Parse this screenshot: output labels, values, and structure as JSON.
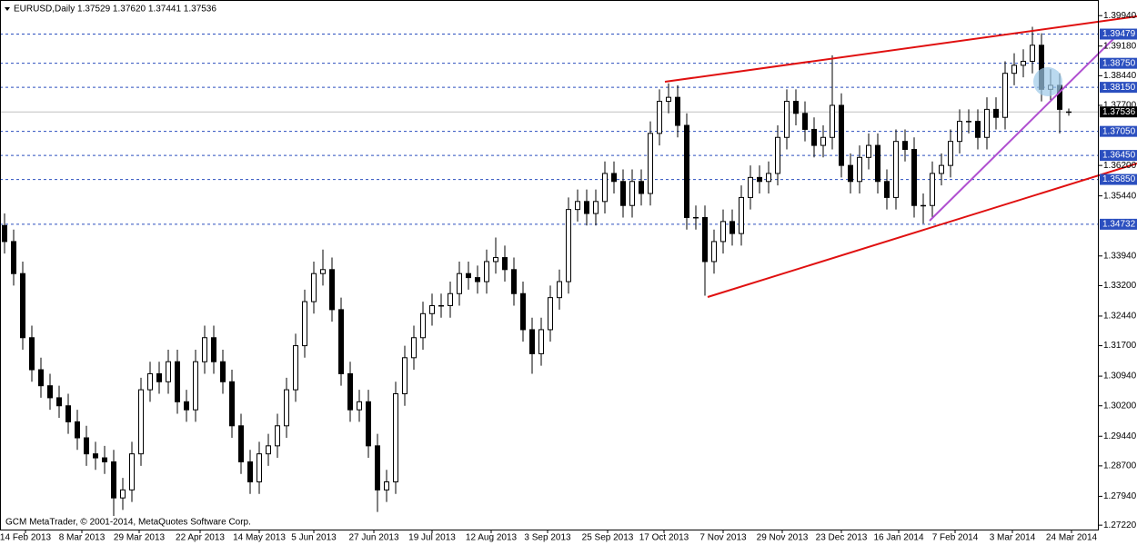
{
  "chart_data": {
    "type": "candlestick",
    "title": "EURUSD,Daily  1.37529 1.37620 1.37441 1.37536",
    "footer": "GCM MetaTrader, © 2001-2014, MetaQuotes Software Corp.",
    "current_price": 1.37536,
    "levels": [
      1.39479,
      {
        "value": 1.3875,
        "label": "1.38750"
      },
      {
        "value": 1.3815,
        "label": "1.38150"
      },
      {
        "value": 1.3705,
        "label": "1.37050"
      },
      {
        "value": 1.3645,
        "label": "1.36450"
      },
      {
        "value": 1.3585,
        "label": "1.35850"
      },
      1.34732
    ],
    "xlim": [
      -0.5,
      120.3
    ],
    "ylim": [
      1.2711,
      1.4033
    ],
    "yticks": [
      {
        "value": 1.3994,
        "label": "1.39940"
      },
      {
        "value": 1.3918,
        "label": "1.39180"
      },
      {
        "value": 1.3844,
        "label": "1.38440"
      },
      {
        "value": 1.377,
        "label": "1.37700"
      },
      {
        "value": 1.362,
        "label": "1.36200"
      },
      {
        "value": 1.3544,
        "label": "1.35440"
      },
      {
        "value": 1.3394,
        "label": "1.33940"
      },
      {
        "value": 1.332,
        "label": "1.33200"
      },
      {
        "value": 1.3244,
        "label": "1.32440"
      },
      {
        "value": 1.317,
        "label": "1.31700"
      },
      {
        "value": 1.3094,
        "label": "1.30940"
      },
      {
        "value": 1.302,
        "label": "1.30200"
      },
      {
        "value": 1.2944,
        "label": "1.29440"
      },
      {
        "value": 1.287,
        "label": "1.28700"
      },
      {
        "value": 1.2794,
        "label": "1.27940"
      },
      {
        "value": 1.2722,
        "label": "1.27220"
      }
    ],
    "xticks": [
      {
        "value": 2.3,
        "label": "14 Feb 2013"
      },
      {
        "value": 8.5,
        "label": "8 Mar 2013"
      },
      {
        "value": 14.8,
        "label": "29 Mar 2013"
      },
      {
        "value": 21.5,
        "label": "22 Apr 2013"
      },
      {
        "value": 28,
        "label": "14 May 2013"
      },
      {
        "value": 34,
        "label": "5 Jun 2013"
      },
      {
        "value": 40.6,
        "label": "27 Jun 2013"
      },
      {
        "value": 47,
        "label": "19 Jul 2013"
      },
      {
        "value": 53.5,
        "label": "12 Aug 2013"
      },
      {
        "value": 59.7,
        "label": "3 Sep 2013"
      },
      {
        "value": 66.3,
        "label": "25 Sep 2013"
      },
      {
        "value": 72.5,
        "label": "17 Oct 2013"
      },
      {
        "value": 79,
        "label": "7 Nov 2013"
      },
      {
        "value": 85.5,
        "label": "29 Nov 2013"
      },
      {
        "value": 92,
        "label": "23 Dec 2013"
      },
      {
        "value": 98.3,
        "label": "16 Jan 2014"
      },
      {
        "value": 104.5,
        "label": "7 Feb 2014"
      },
      {
        "value": 110.8,
        "label": "3 Mar 2014"
      },
      {
        "value": 117.3,
        "label": "24 Mar 2014"
      }
    ],
    "open": [
      1.347,
      1.343,
      1.335,
      1.319,
      1.311,
      1.307,
      1.304,
      1.302,
      1.298,
      1.294,
      1.29,
      1.289,
      1.288,
      1.279,
      1.281,
      1.29,
      1.306,
      1.31,
      1.308,
      1.313,
      1.303,
      1.301,
      1.313,
      1.319,
      1.313,
      1.308,
      1.297,
      1.288,
      1.283,
      1.29,
      1.292,
      1.297,
      1.306,
      1.317,
      1.328,
      1.335,
      1.336,
      1.326,
      1.31,
      1.301,
      1.303,
      1.292,
      1.281,
      1.283,
      1.305,
      1.314,
      1.319,
      1.325,
      1.327,
      1.327,
      1.33,
      1.335,
      1.334,
      1.333,
      1.338,
      1.339,
      1.336,
      1.33,
      1.321,
      1.315,
      1.321,
      1.329,
      1.333,
      1.351,
      1.353,
      1.35,
      1.353,
      1.36,
      1.358,
      1.352,
      1.358,
      1.355,
      1.37,
      1.378,
      1.379,
      1.372,
      1.349,
      1.349,
      1.338,
      1.343,
      1.348,
      1.345,
      1.354,
      1.359,
      1.358,
      1.36,
      1.369,
      1.378,
      1.375,
      1.371,
      1.367,
      1.369,
      1.377,
      1.362,
      1.358,
      1.364,
      1.367,
      1.358,
      1.354,
      1.368,
      1.366,
      1.352,
      1.352,
      1.36,
      1.362,
      1.368,
      1.373,
      1.373,
      1.369,
      1.376,
      1.374,
      1.385,
      1.387,
      1.388,
      1.392,
      1.381,
      1.382,
      1.37529
    ],
    "high": [
      1.35,
      1.346,
      1.338,
      1.322,
      1.314,
      1.31,
      1.307,
      1.305,
      1.301,
      1.297,
      1.293,
      1.292,
      1.291,
      1.284,
      1.293,
      1.309,
      1.313,
      1.313,
      1.316,
      1.316,
      1.306,
      1.316,
      1.322,
      1.322,
      1.316,
      1.311,
      1.3,
      1.291,
      1.293,
      1.295,
      1.3,
      1.309,
      1.32,
      1.331,
      1.338,
      1.341,
      1.339,
      1.329,
      1.313,
      1.306,
      1.306,
      1.295,
      1.286,
      1.308,
      1.317,
      1.322,
      1.328,
      1.33,
      1.33,
      1.333,
      1.338,
      1.338,
      1.337,
      1.341,
      1.344,
      1.342,
      1.339,
      1.333,
      1.324,
      1.324,
      1.332,
      1.336,
      1.354,
      1.356,
      1.356,
      1.356,
      1.363,
      1.363,
      1.361,
      1.361,
      1.361,
      1.373,
      1.381,
      1.3825,
      1.382,
      1.375,
      1.352,
      1.352,
      1.346,
      1.351,
      1.351,
      1.357,
      1.362,
      1.362,
      1.363,
      1.372,
      1.381,
      1.381,
      1.378,
      1.374,
      1.372,
      1.3895,
      1.38,
      1.365,
      1.367,
      1.37,
      1.37,
      1.361,
      1.371,
      1.371,
      1.369,
      1.355,
      1.363,
      1.365,
      1.371,
      1.376,
      1.376,
      1.376,
      1.379,
      1.379,
      1.388,
      1.39,
      1.391,
      1.3966,
      1.395,
      1.386,
      1.385,
      1.3762
    ],
    "low": [
      1.34,
      1.332,
      1.316,
      1.308,
      1.304,
      1.301,
      1.299,
      1.295,
      1.291,
      1.287,
      1.286,
      1.285,
      1.2745,
      1.276,
      1.278,
      1.287,
      1.303,
      1.305,
      1.305,
      1.3,
      1.298,
      1.298,
      1.31,
      1.31,
      1.305,
      1.294,
      1.285,
      1.28,
      1.28,
      1.287,
      1.289,
      1.294,
      1.303,
      1.314,
      1.325,
      1.332,
      1.323,
      1.307,
      1.298,
      1.298,
      1.289,
      1.2755,
      1.278,
      1.28,
      1.302,
      1.311,
      1.316,
      1.322,
      1.324,
      1.324,
      1.327,
      1.331,
      1.33,
      1.33,
      1.335,
      1.333,
      1.327,
      1.318,
      1.31,
      1.312,
      1.318,
      1.326,
      1.33,
      1.348,
      1.347,
      1.347,
      1.35,
      1.355,
      1.349,
      1.349,
      1.352,
      1.352,
      1.367,
      1.375,
      1.369,
      1.346,
      1.346,
      1.3295,
      1.335,
      1.34,
      1.342,
      1.342,
      1.351,
      1.355,
      1.355,
      1.357,
      1.366,
      1.372,
      1.368,
      1.364,
      1.364,
      1.366,
      1.359,
      1.355,
      1.355,
      1.361,
      1.355,
      1.351,
      1.351,
      1.363,
      1.349,
      1.3475,
      1.349,
      1.357,
      1.359,
      1.365,
      1.37,
      1.366,
      1.366,
      1.371,
      1.371,
      1.382,
      1.384,
      1.385,
      1.378,
      1.378,
      1.37,
      1.37441
    ],
    "close": [
      1.343,
      1.335,
      1.319,
      1.311,
      1.307,
      1.304,
      1.302,
      1.298,
      1.294,
      1.29,
      1.289,
      1.288,
      1.279,
      1.281,
      1.29,
      1.306,
      1.31,
      1.308,
      1.313,
      1.303,
      1.301,
      1.313,
      1.319,
      1.313,
      1.308,
      1.297,
      1.288,
      1.283,
      1.29,
      1.292,
      1.297,
      1.306,
      1.317,
      1.328,
      1.335,
      1.336,
      1.326,
      1.31,
      1.301,
      1.303,
      1.292,
      1.281,
      1.283,
      1.305,
      1.314,
      1.319,
      1.325,
      1.327,
      1.327,
      1.33,
      1.335,
      1.334,
      1.333,
      1.338,
      1.339,
      1.336,
      1.33,
      1.321,
      1.315,
      1.321,
      1.329,
      1.333,
      1.351,
      1.353,
      1.35,
      1.353,
      1.36,
      1.358,
      1.352,
      1.358,
      1.355,
      1.37,
      1.378,
      1.379,
      1.372,
      1.349,
      1.349,
      1.338,
      1.343,
      1.348,
      1.345,
      1.354,
      1.359,
      1.358,
      1.36,
      1.369,
      1.378,
      1.375,
      1.371,
      1.367,
      1.369,
      1.377,
      1.362,
      1.358,
      1.364,
      1.367,
      1.358,
      1.354,
      1.368,
      1.366,
      1.352,
      1.352,
      1.36,
      1.362,
      1.368,
      1.373,
      1.373,
      1.369,
      1.376,
      1.374,
      1.385,
      1.387,
      1.388,
      1.392,
      1.381,
      1.382,
      1.376,
      1.37536
    ],
    "up_color": "#ffffff",
    "down_color": "#000000",
    "level_color": "#2b4fbf",
    "trend_color": "#e01010",
    "channel_color": "#b050d0"
  }
}
